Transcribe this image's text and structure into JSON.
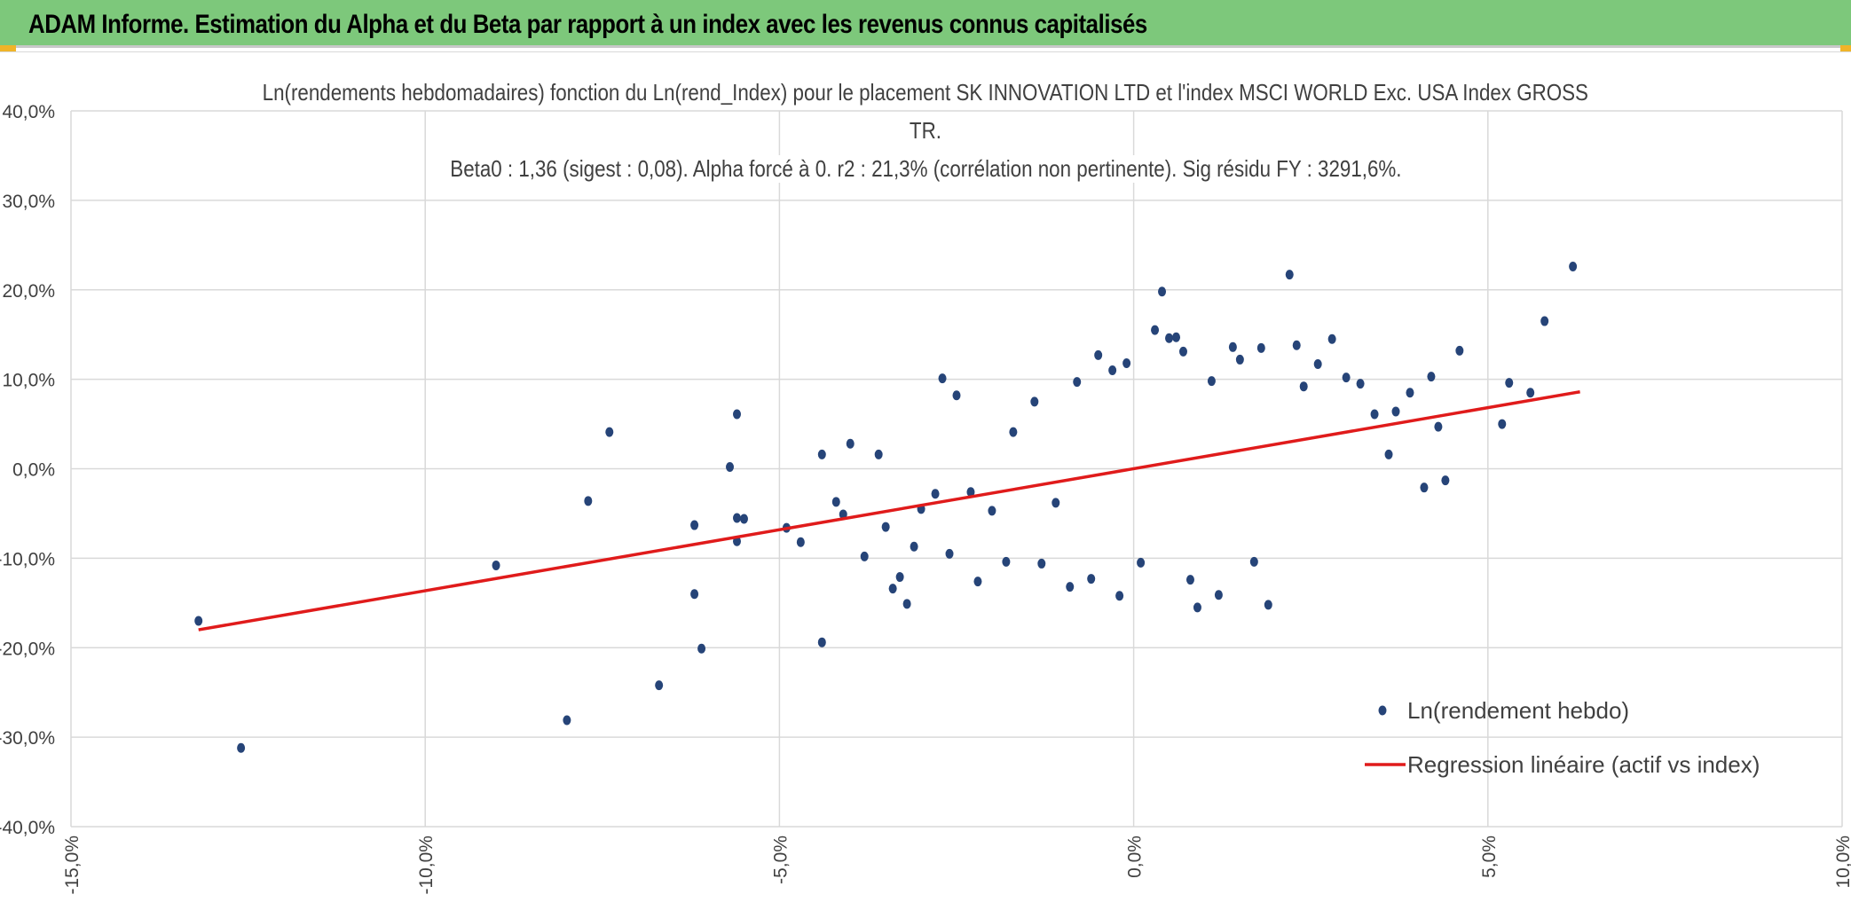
{
  "header": {
    "title": "ADAM Informe. Estimation du Alpha et du Beta par rapport à un index avec les revenus connus capitalisés"
  },
  "chart_data": {
    "type": "scatter",
    "title_lines": [
      "Ln(rendements hebdomadaires) fonction du Ln(rend_Index) pour le placement SK INNOVATION LTD et l'index MSCI WORLD Exc. USA Index GROSS",
      "TR.",
      "Beta0 : 1,36 (sigest : 0,08). Alpha forcé à 0. r2 : 21,3% (corrélation non pertinente). Sig résidu FY : 3291,6%."
    ],
    "xlim": [
      -0.15,
      0.1
    ],
    "ylim": [
      -0.4,
      0.4
    ],
    "x_ticks": [
      -0.15,
      -0.1,
      -0.05,
      0.0,
      0.05,
      0.1
    ],
    "x_tick_labels": [
      "-15,0%",
      "-10,0%",
      "-5,0%",
      "0,0%",
      "5,0%",
      "10,0%"
    ],
    "y_ticks": [
      0.4,
      0.3,
      0.2,
      0.1,
      0.0,
      -0.1,
      -0.2,
      -0.3,
      -0.4
    ],
    "y_tick_labels": [
      "40,0%",
      "30,0%",
      "20,0%",
      "10,0%",
      "0,0%",
      "-10,0%",
      "-20,0%",
      "-30,0%",
      "-40,0%"
    ],
    "grid": true,
    "legend_position": "bottom-right",
    "series": [
      {
        "name": "Ln(rendement hebdo)",
        "kind": "scatter",
        "color": "#264478",
        "points": [
          [
            -0.132,
            -0.17
          ],
          [
            -0.126,
            -0.312
          ],
          [
            -0.09,
            -0.108
          ],
          [
            -0.08,
            -0.281
          ],
          [
            -0.077,
            -0.036
          ],
          [
            -0.074,
            0.041
          ],
          [
            -0.067,
            -0.242
          ],
          [
            -0.062,
            -0.14
          ],
          [
            -0.062,
            -0.063
          ],
          [
            -0.061,
            -0.201
          ],
          [
            -0.057,
            0.002
          ],
          [
            -0.056,
            0.061
          ],
          [
            -0.056,
            -0.055
          ],
          [
            -0.056,
            -0.081
          ],
          [
            -0.055,
            -0.056
          ],
          [
            -0.049,
            -0.066
          ],
          [
            -0.047,
            -0.082
          ],
          [
            -0.044,
            0.016
          ],
          [
            -0.044,
            -0.194
          ],
          [
            -0.042,
            -0.037
          ],
          [
            -0.041,
            -0.051
          ],
          [
            -0.04,
            0.028
          ],
          [
            -0.038,
            -0.098
          ],
          [
            -0.036,
            0.016
          ],
          [
            -0.035,
            -0.065
          ],
          [
            -0.034,
            -0.134
          ],
          [
            -0.033,
            -0.121
          ],
          [
            -0.032,
            -0.151
          ],
          [
            -0.031,
            -0.087
          ],
          [
            -0.03,
            -0.045
          ],
          [
            -0.028,
            -0.028
          ],
          [
            -0.027,
            0.101
          ],
          [
            -0.026,
            -0.095
          ],
          [
            -0.025,
            0.082
          ],
          [
            -0.023,
            -0.026
          ],
          [
            -0.022,
            -0.126
          ],
          [
            -0.02,
            -0.047
          ],
          [
            -0.018,
            -0.104
          ],
          [
            -0.017,
            0.041
          ],
          [
            -0.014,
            0.075
          ],
          [
            -0.013,
            -0.106
          ],
          [
            -0.011,
            -0.038
          ],
          [
            -0.009,
            -0.132
          ],
          [
            -0.008,
            0.097
          ],
          [
            -0.006,
            -0.123
          ],
          [
            -0.005,
            0.127
          ],
          [
            -0.003,
            0.11
          ],
          [
            -0.002,
            -0.142
          ],
          [
            -0.001,
            0.118
          ],
          [
            0.001,
            -0.105
          ],
          [
            0.003,
            0.155
          ],
          [
            0.004,
            0.198
          ],
          [
            0.005,
            0.146
          ],
          [
            0.006,
            0.147
          ],
          [
            0.007,
            0.131
          ],
          [
            0.008,
            -0.124
          ],
          [
            0.009,
            -0.155
          ],
          [
            0.011,
            0.098
          ],
          [
            0.012,
            -0.141
          ],
          [
            0.014,
            0.136
          ],
          [
            0.015,
            0.122
          ],
          [
            0.017,
            -0.104
          ],
          [
            0.018,
            0.135
          ],
          [
            0.019,
            -0.152
          ],
          [
            0.022,
            0.217
          ],
          [
            0.023,
            0.138
          ],
          [
            0.024,
            0.092
          ],
          [
            0.026,
            0.117
          ],
          [
            0.028,
            0.145
          ],
          [
            0.03,
            0.102
          ],
          [
            0.032,
            0.095
          ],
          [
            0.034,
            0.061
          ],
          [
            0.036,
            0.016
          ],
          [
            0.037,
            0.064
          ],
          [
            0.039,
            0.085
          ],
          [
            0.041,
            -0.021
          ],
          [
            0.042,
            0.103
          ],
          [
            0.043,
            0.047
          ],
          [
            0.044,
            -0.013
          ],
          [
            0.046,
            0.132
          ],
          [
            0.052,
            0.05
          ],
          [
            0.053,
            0.096
          ],
          [
            0.056,
            0.085
          ],
          [
            0.058,
            0.165
          ],
          [
            0.062,
            0.226
          ]
        ]
      },
      {
        "name": "Regression linéaire (actif vs index)",
        "kind": "line",
        "color": "#e01b1b",
        "points": [
          [
            -0.132,
            -0.18
          ],
          [
            0.063,
            0.086
          ]
        ]
      }
    ]
  }
}
